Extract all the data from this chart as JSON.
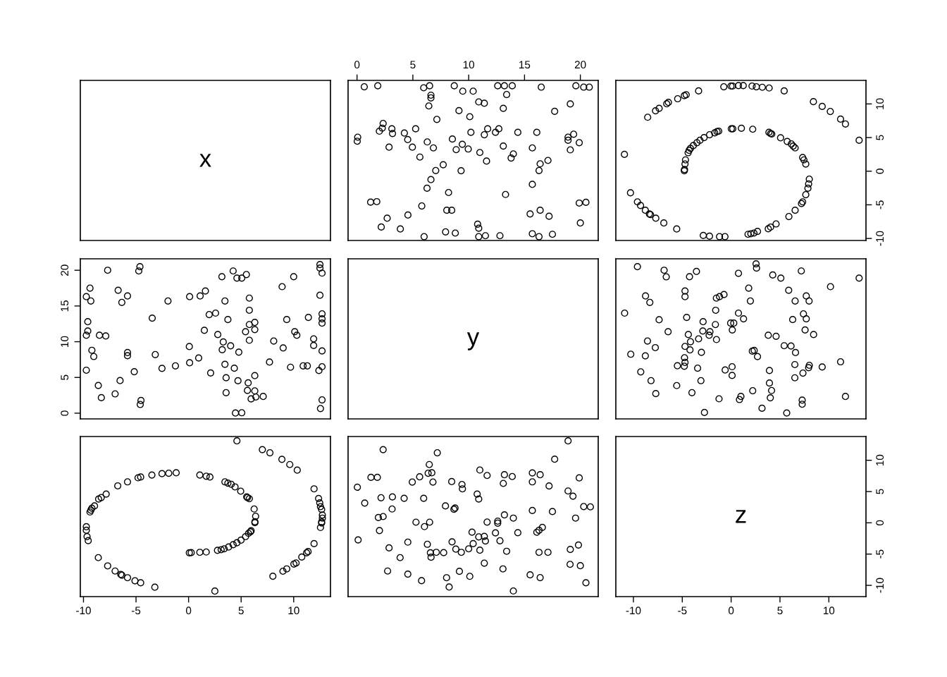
{
  "chart_data": [
    {
      "type": "other",
      "annotations": [
        "x"
      ]
    },
    {
      "type": "scatter",
      "color": "#000000",
      "marker": "circle",
      "tick_labels": "x",
      "xlim": [
        -0.8,
        21.6
      ],
      "ylim": [
        -10.3,
        13.5
      ],
      "xticks": [
        0,
        5,
        10,
        15,
        20
      ],
      "x": [
        0.65,
        1.86,
        5.97,
        6.5,
        8.71,
        9.47,
        10.4,
        12.6,
        13.2,
        13.9,
        16.5,
        19.6,
        20.3,
        20.8,
        6.62,
        6.62,
        13.4,
        10.9,
        11.4,
        6.43,
        13.1,
        19.1,
        9.13,
        10.1,
        17.7,
        7.15,
        2.34,
        2.26,
        2.0,
        3.12,
        3.18,
        5.25,
        4.24,
        4.54,
        0.06,
        0.02,
        2.87,
        4.96,
        6.29,
        6.84,
        5.63,
        8.54,
        9.43,
        8.88,
        9.96,
        10.2,
        11.0,
        11.4,
        11.7,
        12.4,
        12.7,
        11.6,
        13.1,
        14.0,
        13.8,
        14.4,
        16.1,
        15.7,
        17.1,
        16.4,
        16.3,
        15.7,
        18.9,
        19.4,
        18.9,
        19.9,
        19.1,
        7.72,
        7.05,
        9.32,
        6.62,
        6.27,
        8.2,
        13.3,
        1.22,
        1.77,
        5.8,
        8.04,
        8.48,
        4.56,
        2.7,
        2.17,
        3.88,
        6.01,
        7.93,
        8.8,
        10.8,
        10.9,
        10.9,
        11.5,
        12.8,
        15.5,
        16.4,
        17.2,
        15.7,
        16.3,
        17.5,
        19.9,
        20.5,
        20.0
      ],
      "values": [
        12.55,
        12.7,
        12.4,
        12.7,
        12.7,
        11.9,
        11.9,
        12.7,
        12.7,
        12.7,
        12.5,
        12.7,
        12.5,
        12.5,
        11.3,
        10.9,
        11.4,
        10.3,
        10.1,
        9.7,
        9.34,
        10.0,
        9.0,
        8.1,
        8.9,
        7.7,
        7.1,
        6.4,
        5.95,
        6.3,
        5.6,
        6.3,
        5.67,
        4.7,
        5.06,
        4.46,
        3.57,
        3.57,
        4.35,
        3.46,
        2.1,
        4.78,
        4.0,
        3.2,
        3.3,
        5.78,
        2.78,
        5.42,
        6.3,
        5.78,
        6.3,
        1.5,
        3.74,
        2.57,
        1.96,
        5.78,
        5.78,
        3.46,
        1.6,
        1.1,
        0.1,
        -1.96,
        5.06,
        5.5,
        4.6,
        4.24,
        3.17,
        0.96,
        0.1,
        0.07,
        -1.25,
        -2.53,
        -3.17,
        -3.46,
        -4.6,
        -4.53,
        -5.17,
        -5.81,
        -5.81,
        -6.52,
        -6.99,
        -8.3,
        -8.59,
        -9.73,
        -9.02,
        -9.2,
        -7.88,
        -8.48,
        -9.73,
        -9.59,
        -9.59,
        -6.35,
        -5.81,
        -6.7,
        -9.3,
        -9.73,
        -9.38,
        -4.74,
        -4.63,
        -7.7
      ]
    },
    {
      "type": "scatter",
      "color": "#000000",
      "marker": "circle",
      "tick_labels": "y",
      "xlim": [
        -11.8,
        13.8
      ],
      "ylim": [
        -10.3,
        13.5
      ],
      "yticks": [
        -10,
        -5,
        0,
        5,
        10
      ],
      "x": [
        -0.75,
        -0.02,
        0.15,
        0.75,
        1.24,
        2.14,
        2.58,
        3.19,
        3.89,
        5.43,
        -3.33,
        -4.6,
        -4.79,
        -5.47,
        -6.42,
        -6.59,
        -7.37,
        -7.74,
        -8.54,
        -10.92,
        8.42,
        9.32,
        10.15,
        11.2,
        11.7,
        13.1,
        -4.79,
        -4.77,
        -4.72,
        -4.67,
        -4.4,
        -4.3,
        -4.16,
        -3.87,
        -3.5,
        -3.19,
        -2.77,
        -2.21,
        -1.68,
        -1.44,
        -1.27,
        0.02,
        0.17,
        1.05,
        2.21,
        3.87,
        4.04,
        4.16,
        5.06,
        5.74,
        6.16,
        6.35,
        6.55,
        7.32,
        7.45,
        7.64,
        8.0,
        7.93,
        7.86,
        7.64,
        7.32,
        7.2,
        6.55,
        5.91,
        4.6,
        4.04,
        3.8,
        2.7,
        2.34,
        2.02,
        1.73,
        -0.63,
        -1.19,
        -2.21,
        -2.85,
        -5.57,
        -6.89,
        -7.71,
        -8.25,
        -8.37,
        -8.78,
        -9.27,
        -9.59,
        -10.3
      ],
      "values": [
        12.55,
        12.66,
        12.66,
        12.73,
        12.73,
        12.66,
        12.55,
        12.48,
        12.37,
        11.94,
        11.94,
        11.37,
        11.23,
        10.77,
        10.23,
        10.02,
        9.34,
        8.98,
        8.02,
        2.5,
        10.34,
        9.63,
        8.88,
        7.74,
        7.02,
        4.6,
        0.07,
        0.25,
        1.07,
        1.68,
        2.75,
        3.1,
        3.39,
        3.81,
        4.24,
        4.6,
        4.99,
        5.42,
        5.7,
        5.88,
        5.95,
        6.31,
        6.31,
        6.38,
        6.24,
        5.78,
        5.6,
        5.53,
        4.96,
        4.42,
        4.06,
        3.74,
        3.46,
        2.03,
        1.68,
        1.07,
        -1.18,
        -1.89,
        -2.53,
        -3.49,
        -4.56,
        -4.81,
        -5.81,
        -6.74,
        -7.84,
        -8.31,
        -8.56,
        -8.95,
        -9.2,
        -9.3,
        -9.38,
        -9.73,
        -9.73,
        -9.66,
        -9.55,
        -8.59,
        -7.7,
        -6.99,
        -6.45,
        -6.35,
        -5.81,
        -5.1,
        -4.56,
        -3.21
      ]
    },
    {
      "type": "scatter",
      "color": "#000000",
      "marker": "circle",
      "tick_labels": "y",
      "xlim": [
        -10.3,
        13.5
      ],
      "ylim": [
        -0.8,
        21.6
      ],
      "yticks": [
        0,
        5,
        10,
        15,
        20
      ],
      "x": [
        12.55,
        12.7,
        12.4,
        12.7,
        12.7,
        11.9,
        11.9,
        12.7,
        12.7,
        12.7,
        12.5,
        12.7,
        12.5,
        12.5,
        11.3,
        10.9,
        11.4,
        10.3,
        10.1,
        9.7,
        9.34,
        10.0,
        9.0,
        8.1,
        8.9,
        7.7,
        7.1,
        6.4,
        5.95,
        6.3,
        5.6,
        6.3,
        5.67,
        4.7,
        5.06,
        4.46,
        3.57,
        3.57,
        4.35,
        3.46,
        2.1,
        4.78,
        4.0,
        3.2,
        3.3,
        5.78,
        2.78,
        5.42,
        6.3,
        5.78,
        6.3,
        1.5,
        3.74,
        2.57,
        1.96,
        5.78,
        5.78,
        3.46,
        1.6,
        1.1,
        0.1,
        -1.96,
        5.06,
        5.5,
        4.6,
        4.24,
        3.17,
        0.96,
        0.1,
        0.07,
        -1.25,
        -2.53,
        -3.17,
        -3.46,
        -4.6,
        -4.53,
        -5.17,
        -5.81,
        -5.81,
        -6.52,
        -6.99,
        -8.3,
        -8.59,
        -9.73,
        -9.02,
        -9.2,
        -7.88,
        -8.48,
        -9.73,
        -9.59,
        -9.59,
        -6.35,
        -5.81,
        -6.7,
        -9.3,
        -9.73,
        -9.38,
        -4.74,
        -4.63,
        -7.7
      ],
      "values": [
        0.65,
        1.86,
        5.97,
        6.5,
        8.71,
        9.47,
        10.4,
        12.6,
        13.2,
        13.9,
        16.5,
        19.6,
        20.3,
        20.8,
        6.62,
        6.62,
        13.4,
        10.9,
        11.4,
        6.43,
        13.1,
        19.1,
        9.13,
        10.1,
        17.7,
        7.15,
        2.34,
        2.26,
        2.0,
        3.12,
        3.18,
        5.25,
        4.24,
        4.54,
        0.06,
        0.02,
        2.87,
        4.96,
        6.29,
        6.84,
        5.63,
        8.54,
        9.43,
        8.88,
        9.96,
        10.2,
        11.0,
        11.4,
        11.7,
        12.4,
        12.7,
        11.6,
        13.1,
        14.0,
        13.8,
        14.4,
        16.1,
        15.7,
        17.1,
        16.4,
        16.3,
        15.7,
        18.9,
        19.4,
        18.9,
        19.9,
        19.1,
        7.72,
        7.05,
        9.32,
        6.62,
        6.27,
        8.2,
        13.3,
        1.22,
        1.77,
        5.8,
        8.04,
        8.48,
        4.56,
        2.7,
        2.17,
        3.88,
        6.01,
        7.93,
        8.8,
        10.8,
        10.9,
        10.9,
        11.5,
        12.8,
        15.5,
        16.4,
        17.2,
        15.7,
        16.3,
        17.5,
        19.9,
        20.5,
        20.0
      ]
    },
    {
      "type": "other",
      "annotations": [
        "y"
      ]
    },
    {
      "type": "scatter",
      "color": "#000000",
      "marker": "circle",
      "tick_labels": false,
      "xlim": [
        -11.8,
        13.8
      ],
      "ylim": [
        -0.8,
        21.6
      ],
      "x": [
        -9.59,
        -6.86,
        -6.64,
        -4.26,
        -3.55,
        0.75,
        2.55,
        2.6,
        4.26,
        5.09,
        7.18,
        13.1,
        10.17,
        5.89,
        7.69,
        7.98,
        6.55,
        1.8,
        1.97,
        -0.73,
        -1.19,
        -1.51,
        -4.72,
        -4.72,
        -8.76,
        -8.32,
        -1.58,
        0.75,
        1.27,
        -0.05,
        0.27,
        0.12,
        7.4,
        7.69,
        6.3,
        7.57,
        8.44,
        -10.9,
        -7.37,
        -4.55,
        -2.87,
        -1.61,
        -6.45,
        -4.38,
        -2.9,
        -2.17,
        -2.25,
        -1.5,
        -3.33,
        -8.56,
        -7.76,
        -4.16,
        -4.72,
        -4.21,
        -3.04,
        3.8,
        4.6,
        5.43,
        6.13,
        6.59,
        2.17,
        2.36,
        2.7,
        -10.27,
        -8.78,
        -4.77,
        -4.72,
        -5.5,
        -4.79,
        -3.43,
        0.1,
        -0.61,
        0.1,
        -9.25,
        -8.2,
        -3.09,
        -5.57,
        -7.71,
        -4.01,
        -1.24,
        1.0,
        0.85,
        2.21,
        3.92,
        3.92,
        4.14,
        4.01,
        6.52,
        6.52,
        7.35,
        7.93,
        8.0,
        9.32,
        11.2,
        11.7,
        7.27,
        7.27,
        3.16,
        5.69,
        -2.73
      ],
      "values": [
        20.5,
        20.0,
        19.08,
        19.1,
        19.83,
        19.57,
        20.9,
        20.3,
        19.34,
        18.9,
        19.9,
        18.9,
        17.7,
        17.2,
        16.4,
        15.7,
        15.7,
        17.5,
        15.7,
        16.6,
        16.3,
        16.1,
        17.1,
        16.3,
        16.4,
        15.5,
        14.4,
        14.0,
        13.2,
        12.6,
        12.6,
        11.65,
        13.9,
        13.2,
        13.1,
        11.65,
        11.0,
        14.0,
        13.07,
        13.4,
        12.8,
        12.4,
        11.4,
        11.0,
        11.5,
        11.4,
        10.9,
        10.3,
        10.4,
        10.1,
        9.17,
        10.0,
        9.34,
        8.85,
        8.51,
        10.9,
        10.76,
        9.44,
        9.4,
        8.48,
        8.68,
        8.78,
        7.92,
        8.25,
        8.02,
        7.76,
        7.1,
        6.63,
        6.57,
        6.3,
        6.5,
        6.04,
        5.28,
        5.78,
        4.55,
        4.55,
        3.86,
        2.74,
        2.87,
        2.01,
        2.34,
        1.91,
        3.14,
        5.97,
        4.22,
        3.17,
        2.15,
        6.8,
        4.95,
        5.61,
        6.37,
        6.7,
        6.47,
        7.19,
        2.34,
        1.82,
        1.25,
        0.69,
        0.03,
        0.1
      ]
    },
    {
      "type": "scatter",
      "color": "#000000",
      "marker": "circle",
      "tick_labels": "x",
      "xlim": [
        -10.3,
        13.5
      ],
      "ylim": [
        -11.8,
        13.8
      ],
      "xticks": [
        -10,
        -5,
        0,
        5,
        10
      ],
      "x": [
        12.55,
        12.66,
        12.66,
        12.73,
        12.73,
        12.66,
        12.55,
        12.48,
        12.37,
        11.94,
        11.94,
        11.37,
        11.23,
        10.77,
        10.23,
        10.02,
        9.34,
        8.98,
        8.02,
        2.5,
        10.34,
        9.63,
        8.88,
        7.74,
        7.02,
        4.6,
        0.07,
        0.25,
        1.07,
        1.68,
        2.75,
        3.1,
        3.39,
        3.81,
        4.24,
        4.6,
        4.99,
        5.42,
        5.7,
        5.88,
        5.95,
        6.31,
        6.31,
        6.38,
        6.24,
        5.78,
        5.6,
        5.53,
        4.96,
        4.42,
        4.06,
        3.74,
        3.46,
        2.03,
        1.68,
        1.07,
        -1.18,
        -1.89,
        -2.53,
        -3.49,
        -4.56,
        -4.81,
        -5.81,
        -6.74,
        -7.84,
        -8.31,
        -8.56,
        -8.95,
        -9.2,
        -9.3,
        -9.38,
        -9.73,
        -9.73,
        -9.66,
        -9.55,
        -8.59,
        -7.7,
        -6.99,
        -6.45,
        -6.35,
        -5.81,
        -5.1,
        -4.56,
        -3.21
      ],
      "values": [
        -0.75,
        -0.02,
        0.15,
        0.75,
        1.24,
        2.14,
        2.58,
        3.19,
        3.89,
        5.43,
        -3.33,
        -4.6,
        -4.79,
        -5.47,
        -6.42,
        -6.59,
        -7.37,
        -7.74,
        -8.54,
        -10.92,
        8.42,
        9.32,
        10.15,
        11.2,
        11.7,
        13.1,
        -4.79,
        -4.77,
        -4.72,
        -4.67,
        -4.4,
        -4.3,
        -4.16,
        -3.87,
        -3.5,
        -3.19,
        -2.77,
        -2.21,
        -1.68,
        -1.44,
        -1.27,
        0.02,
        0.17,
        1.05,
        2.21,
        3.87,
        4.04,
        4.16,
        5.06,
        5.74,
        6.16,
        6.35,
        6.55,
        7.32,
        7.45,
        7.64,
        8.0,
        7.93,
        7.86,
        7.64,
        7.32,
        7.2,
        6.55,
        5.91,
        4.6,
        4.04,
        3.8,
        2.7,
        2.34,
        2.02,
        1.73,
        -0.63,
        -1.19,
        -2.21,
        -2.85,
        -5.57,
        -6.89,
        -7.71,
        -8.25,
        -8.37,
        -8.78,
        -9.27,
        -9.59,
        -10.3
      ]
    },
    {
      "type": "scatter",
      "color": "#000000",
      "marker": "circle",
      "tick_labels": false,
      "xlim": [
        -0.8,
        21.6
      ],
      "ylim": [
        -11.8,
        13.8
      ],
      "x": [
        20.5,
        20.0,
        19.08,
        19.1,
        19.83,
        19.57,
        20.9,
        20.3,
        19.34,
        18.9,
        19.9,
        18.9,
        17.7,
        17.2,
        16.4,
        15.7,
        15.7,
        17.5,
        15.7,
        16.6,
        16.3,
        16.1,
        17.1,
        16.3,
        16.4,
        15.5,
        14.4,
        14.0,
        13.2,
        12.6,
        12.6,
        11.65,
        13.9,
        13.2,
        13.1,
        11.65,
        11.0,
        14.0,
        13.07,
        13.4,
        12.8,
        12.4,
        11.4,
        11.0,
        11.5,
        11.4,
        10.9,
        10.3,
        10.4,
        10.1,
        9.17,
        10.0,
        9.34,
        8.85,
        8.51,
        10.9,
        10.76,
        9.44,
        9.4,
        8.48,
        8.68,
        8.78,
        7.92,
        8.25,
        8.02,
        7.76,
        7.1,
        6.63,
        6.57,
        6.3,
        6.5,
        6.04,
        5.28,
        5.78,
        4.55,
        4.55,
        3.86,
        2.74,
        2.87,
        2.01,
        2.34,
        1.91,
        3.14,
        5.97,
        4.22,
        3.17,
        2.15,
        6.8,
        4.95,
        5.61,
        6.37,
        6.7,
        6.47,
        7.19,
        2.34,
        1.82,
        1.25,
        0.69,
        0.03,
        0.1
      ],
      "values": [
        -9.59,
        -6.86,
        -6.64,
        -4.26,
        -3.55,
        0.75,
        2.55,
        2.6,
        4.26,
        5.09,
        7.18,
        13.1,
        10.17,
        5.89,
        7.69,
        7.98,
        6.55,
        1.8,
        1.97,
        -0.73,
        -1.19,
        -1.51,
        -4.72,
        -4.72,
        -8.76,
        -8.32,
        -1.58,
        0.75,
        1.27,
        -0.05,
        0.27,
        0.12,
        7.4,
        7.69,
        6.3,
        7.57,
        8.44,
        -10.9,
        -7.37,
        -4.55,
        -2.87,
        -1.61,
        -6.45,
        -4.38,
        -2.9,
        -2.17,
        -2.25,
        -1.5,
        -3.33,
        -8.56,
        -7.76,
        -4.16,
        -4.72,
        -4.21,
        -3.04,
        3.8,
        4.6,
        5.43,
        6.13,
        6.59,
        2.17,
        2.36,
        2.7,
        -10.27,
        -8.78,
        -4.77,
        -4.72,
        -5.5,
        -4.79,
        -3.43,
        0.1,
        -0.61,
        0.1,
        -9.25,
        -8.2,
        -3.09,
        -5.57,
        -7.71,
        -4.01,
        -1.24,
        1.0,
        0.85,
        2.21,
        3.92,
        3.92,
        4.14,
        4.01,
        6.52,
        6.52,
        7.35,
        7.93,
        8.0,
        9.32,
        11.2,
        11.7,
        7.27,
        7.27,
        3.16,
        5.69,
        -2.73
      ]
    },
    {
      "type": "scatter",
      "annotations": [
        "z"
      ],
      "xlim": [
        -11.8,
        13.8
      ],
      "ylim": [
        -11.8,
        13.8
      ],
      "xticks": [
        -10,
        -5,
        0,
        5,
        10
      ],
      "yticks": [
        -10,
        -5,
        0,
        5,
        10
      ]
    }
  ]
}
